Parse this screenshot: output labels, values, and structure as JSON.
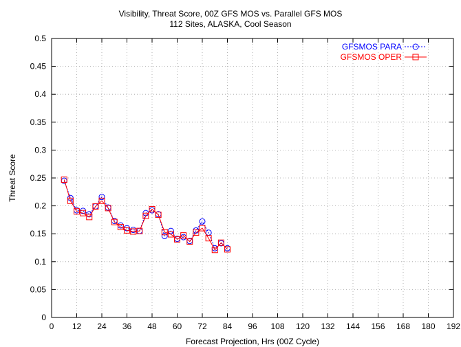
{
  "chart_data": {
    "type": "line",
    "title": "Visibility, Threat Score, 00Z GFS MOS vs. Parallel GFS MOS",
    "subtitle": "112 Sites, ALASKA, Cool Season",
    "xlabel": "Forecast Projection, Hrs (00Z Cycle)",
    "ylabel": "Threat Score",
    "xlim": [
      0,
      192
    ],
    "ylim": [
      0,
      0.5
    ],
    "x_ticks": [
      0,
      12,
      24,
      36,
      48,
      60,
      72,
      84,
      96,
      108,
      120,
      132,
      144,
      156,
      168,
      180,
      192
    ],
    "y_ticks": [
      0,
      0.05,
      0.1,
      0.15,
      0.2,
      0.25,
      0.3,
      0.35,
      0.4,
      0.45,
      0.5
    ],
    "grid": true,
    "legend_position": "top-right",
    "x": [
      6,
      9,
      12,
      15,
      18,
      21,
      24,
      27,
      30,
      33,
      36,
      39,
      42,
      45,
      48,
      51,
      54,
      57,
      60,
      63,
      66,
      69,
      72,
      75,
      78,
      81,
      84
    ],
    "series": [
      {
        "name": "GFSMOS PARA",
        "color": "#0000ff",
        "line_style": "dotted",
        "marker": "circle",
        "values": [
          0.245,
          0.214,
          0.192,
          0.191,
          0.185,
          0.199,
          0.216,
          0.197,
          0.173,
          0.165,
          0.16,
          0.157,
          0.155,
          0.187,
          0.192,
          0.185,
          0.146,
          0.155,
          0.141,
          0.144,
          0.137,
          0.156,
          0.172,
          0.152,
          0.124,
          0.133,
          0.124
        ]
      },
      {
        "name": "GFSMOS OPER",
        "color": "#ff0000",
        "line_style": "solid",
        "marker": "square",
        "values": [
          0.247,
          0.209,
          0.19,
          0.187,
          0.18,
          0.199,
          0.209,
          0.196,
          0.171,
          0.162,
          0.156,
          0.154,
          0.155,
          0.182,
          0.194,
          0.184,
          0.153,
          0.149,
          0.14,
          0.147,
          0.136,
          0.152,
          0.16,
          0.142,
          0.121,
          0.134,
          0.122
        ]
      }
    ]
  }
}
